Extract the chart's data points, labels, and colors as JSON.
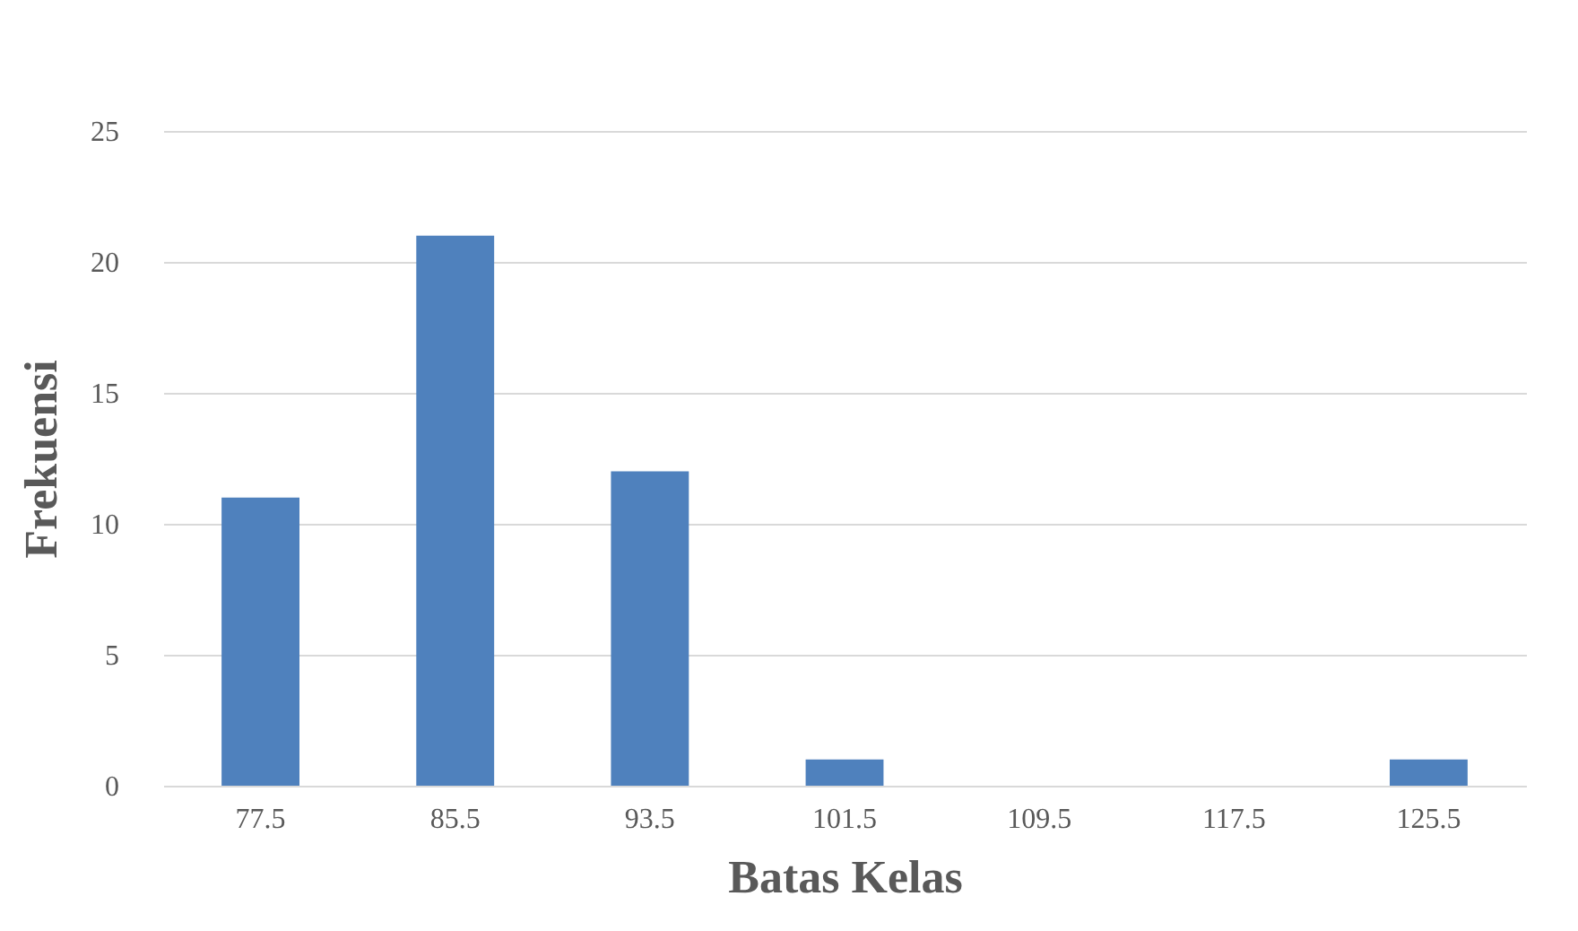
{
  "chart_data": {
    "type": "bar",
    "xlabel": "Batas  Kelas",
    "ylabel": "Frekuensi",
    "categories": [
      "77.5",
      "85.5",
      "93.5",
      "101.5",
      "109.5",
      "117.5",
      "125.5"
    ],
    "values": [
      11,
      21,
      12,
      1,
      0,
      0,
      1
    ],
    "color": "#4f81bd",
    "ylim": [
      0,
      25
    ],
    "yticks": [
      0,
      5,
      10,
      15,
      20,
      25
    ],
    "grid": "y"
  }
}
